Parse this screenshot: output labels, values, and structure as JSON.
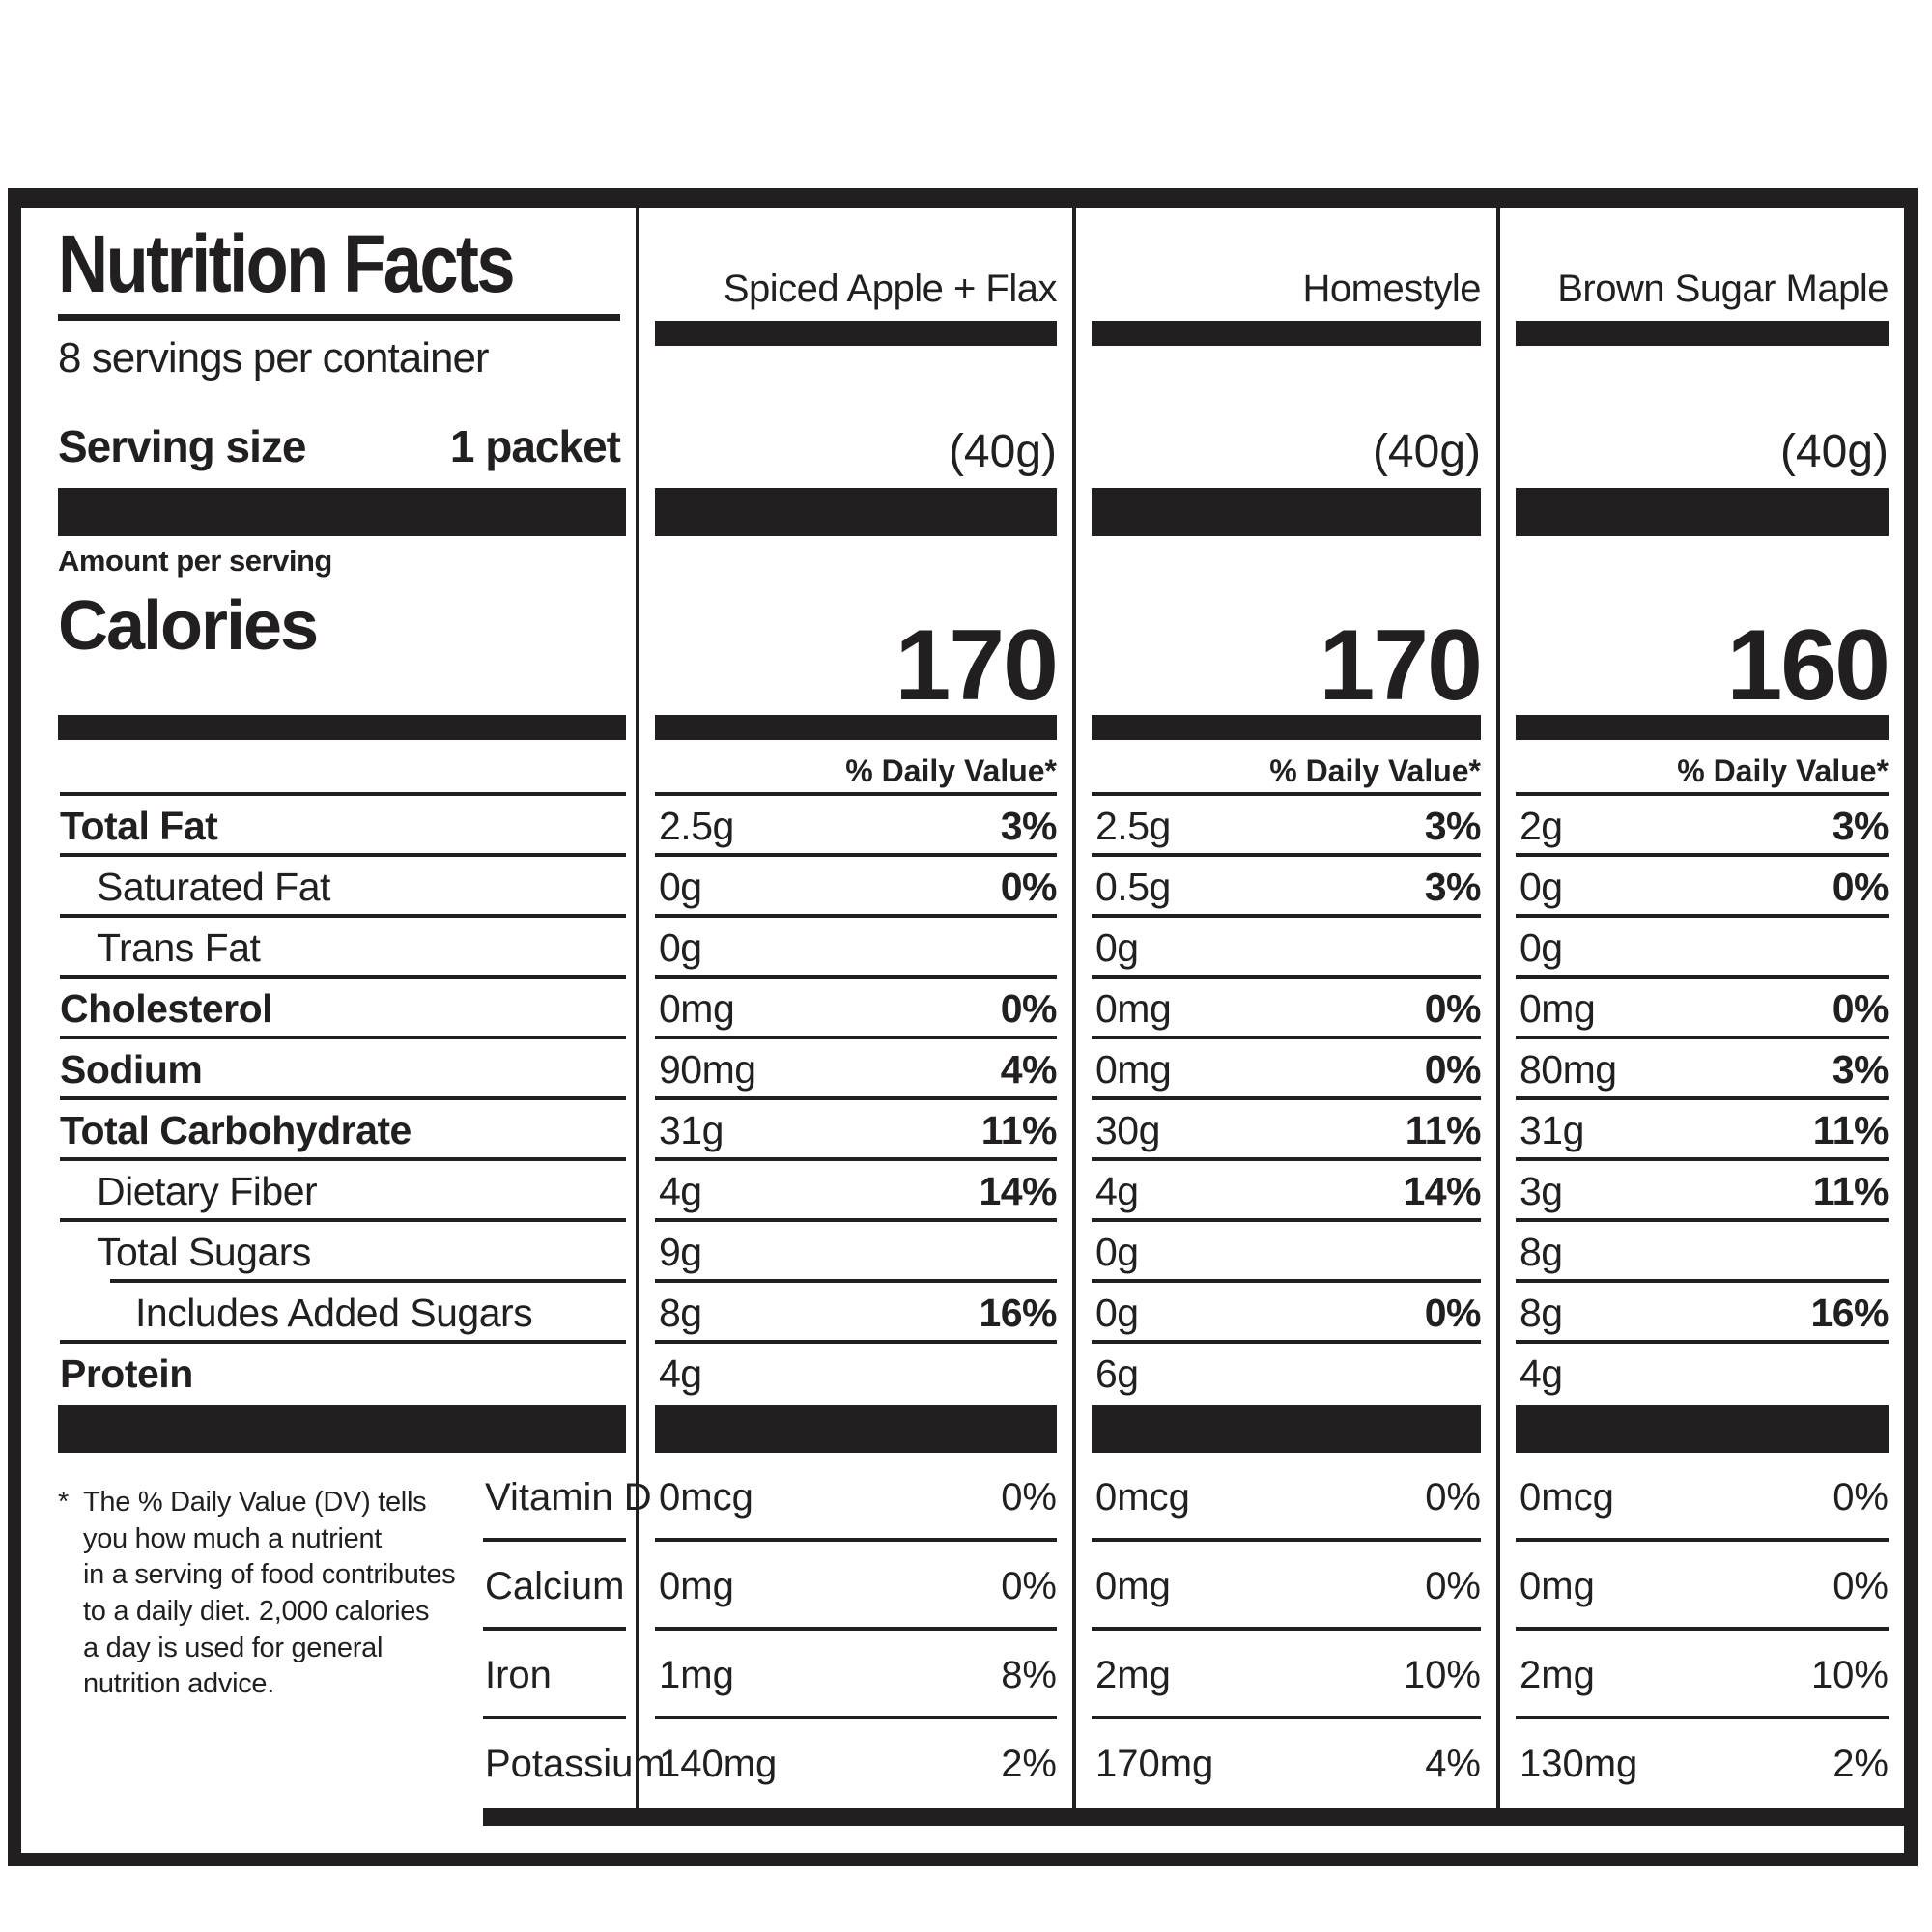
{
  "header": {
    "title": "Nutrition Facts",
    "servings_per_container": "8 servings per container",
    "serving_size_label": "Serving size",
    "serving_size_value": "1 packet",
    "amount_per_serving": "Amount per serving",
    "calories_label": "Calories",
    "daily_value_header": "% Daily Value*"
  },
  "columns": [
    {
      "name": "Spiced Apple + Flax",
      "serving_weight": "(40g)",
      "calories": "170"
    },
    {
      "name": "Homestyle",
      "serving_weight": "(40g)",
      "calories": "170"
    },
    {
      "name": "Brown Sugar Maple",
      "serving_weight": "(40g)",
      "calories": "160"
    }
  ],
  "nutrients": [
    {
      "label": "Total Fat",
      "values": [
        "2.5g",
        "2.5g",
        "2g"
      ],
      "dv": [
        "3%",
        "3%",
        "3%"
      ]
    },
    {
      "label": "Saturated Fat",
      "values": [
        "0g",
        "0.5g",
        "0g"
      ],
      "dv": [
        "0%",
        "3%",
        "0%"
      ]
    },
    {
      "label": "Trans Fat",
      "values": [
        "0g",
        "0g",
        "0g"
      ],
      "dv": [
        "",
        "",
        ""
      ]
    },
    {
      "label": "Cholesterol",
      "values": [
        "0mg",
        "0mg",
        "0mg"
      ],
      "dv": [
        "0%",
        "0%",
        "0%"
      ]
    },
    {
      "label": "Sodium",
      "values": [
        "90mg",
        "0mg",
        "80mg"
      ],
      "dv": [
        "4%",
        "0%",
        "3%"
      ]
    },
    {
      "label": "Total Carbohydrate",
      "values": [
        "31g",
        "30g",
        "31g"
      ],
      "dv": [
        "11%",
        "11%",
        "11%"
      ]
    },
    {
      "label": "Dietary Fiber",
      "values": [
        "4g",
        "4g",
        "3g"
      ],
      "dv": [
        "14%",
        "14%",
        "11%"
      ]
    },
    {
      "label": "Total Sugars",
      "values": [
        "9g",
        "0g",
        "8g"
      ],
      "dv": [
        "",
        "",
        ""
      ]
    },
    {
      "label": "Includes Added Sugars",
      "values": [
        "8g",
        "0g",
        "8g"
      ],
      "dv": [
        "16%",
        "0%",
        "16%"
      ]
    },
    {
      "label": "Protein",
      "values": [
        "4g",
        "6g",
        "4g"
      ],
      "dv": [
        "",
        "",
        ""
      ]
    }
  ],
  "vitamins": [
    {
      "label": "Vitamin D",
      "values": [
        "0mcg",
        "0mcg",
        "0mcg"
      ],
      "dv": [
        "0%",
        "0%",
        "0%"
      ]
    },
    {
      "label": "Calcium",
      "values": [
        "0mg",
        "0mg",
        "0mg"
      ],
      "dv": [
        "0%",
        "0%",
        "0%"
      ]
    },
    {
      "label": "Iron",
      "values": [
        "1mg",
        "2mg",
        "2mg"
      ],
      "dv": [
        "8%",
        "10%",
        "10%"
      ]
    },
    {
      "label": "Potassium",
      "values": [
        "140mg",
        "170mg",
        "130mg"
      ],
      "dv": [
        "2%",
        "4%",
        "2%"
      ]
    }
  ],
  "footnote": {
    "star": "*",
    "lines": [
      "The % Daily Value (DV) tells",
      "you how much a nutrient",
      "in a serving of food contributes",
      "to a daily diet. 2,000 calories",
      "a day is used for general",
      "nutrition advice."
    ]
  },
  "colors": {
    "ink": "#221f20",
    "paper": "#ffffff"
  }
}
